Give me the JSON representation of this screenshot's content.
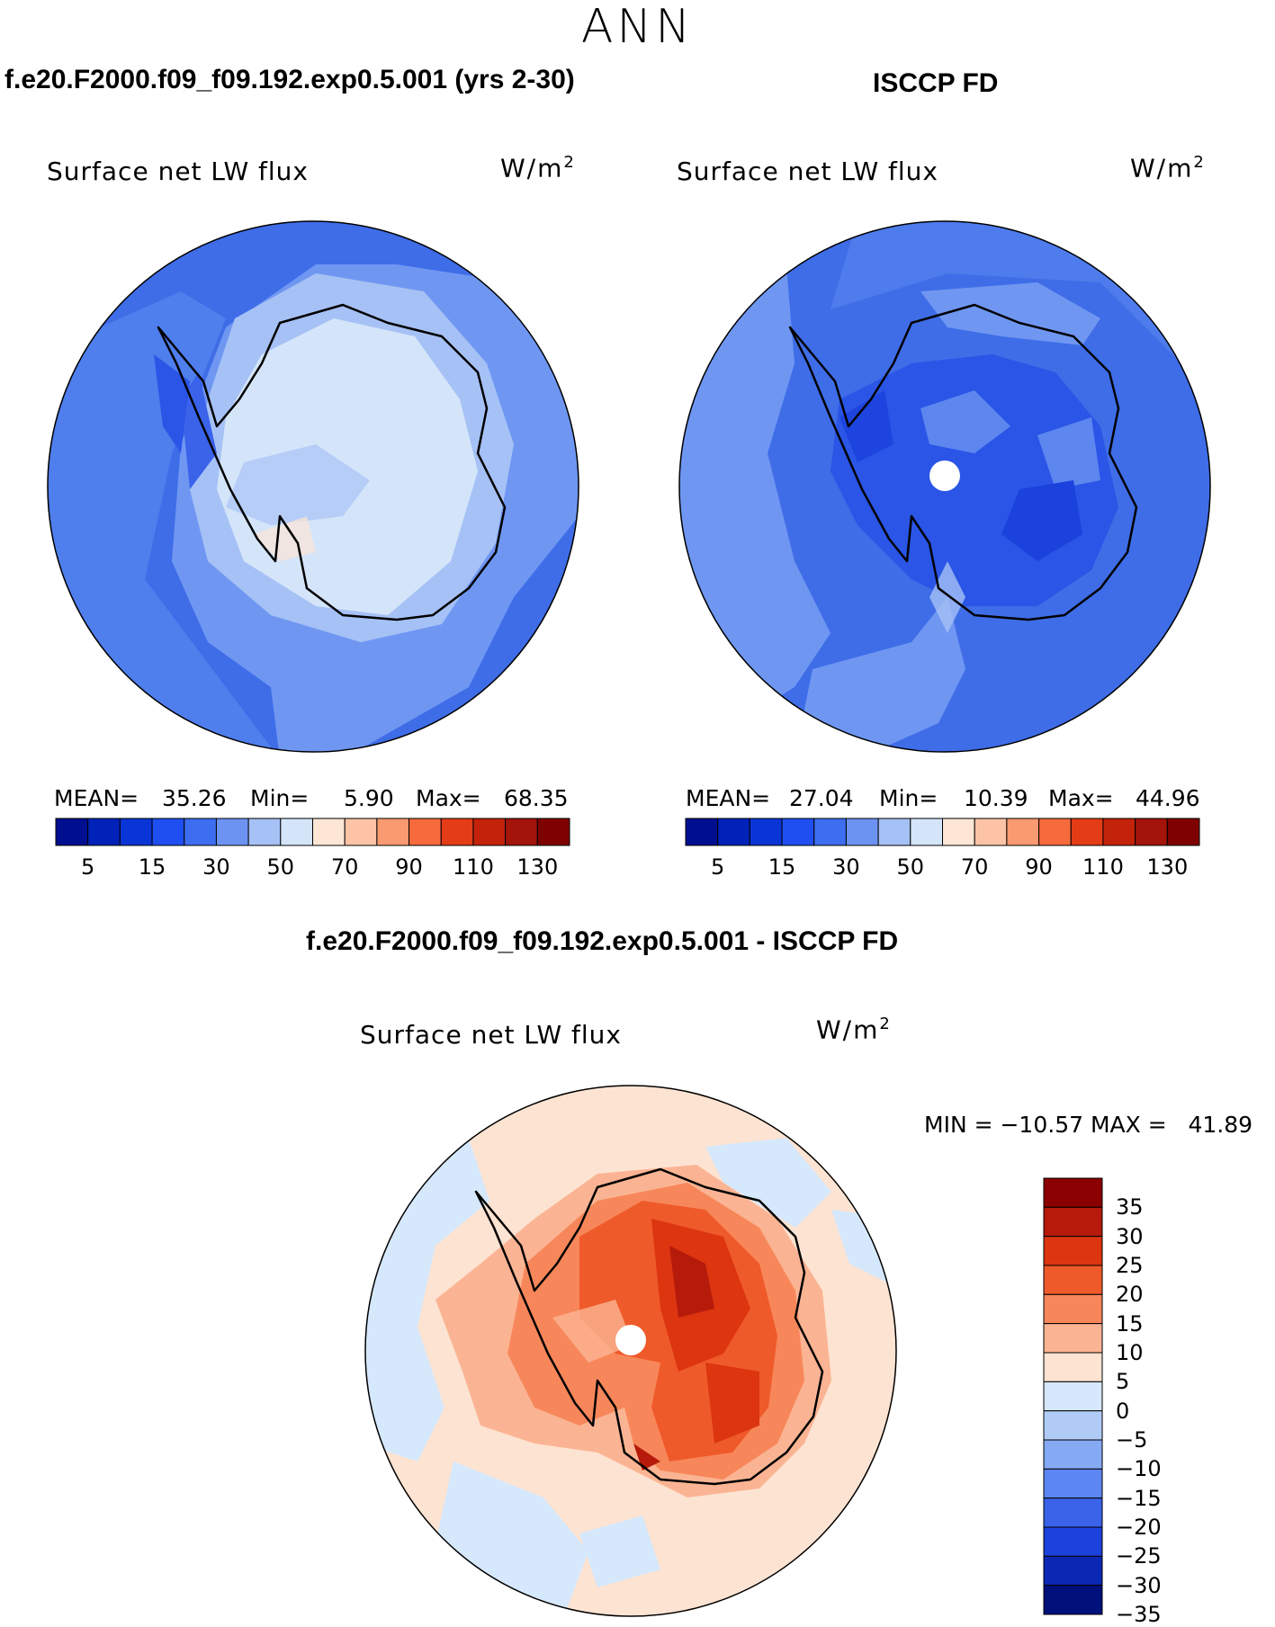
{
  "season": "ANN",
  "panels": {
    "model": {
      "title": "f.e20.F2000.f09_f09.192.exp0.5.001 (yrs 2-30)",
      "variable": "Surface net LW flux",
      "units": "W/m",
      "units_sup": "2",
      "mean_label": "MEAN=",
      "mean_value": "35.26",
      "min_label": "Min=",
      "min_value": "5.90",
      "max_label": "Max=",
      "max_value": "68.35"
    },
    "obs": {
      "title": "ISCCP FD",
      "variable": "Surface net LW flux",
      "units": "W/m",
      "units_sup": "2",
      "mean_label": "MEAN=",
      "mean_value": "27.04",
      "min_label": "Min=",
      "min_value": "10.39",
      "max_label": "Max=",
      "max_value": "44.96"
    },
    "diff": {
      "title": "f.e20.F2000.f09_f09.192.exp0.5.001 - ISCCP FD",
      "variable": "Surface net LW flux",
      "units": "W/m",
      "units_sup": "2",
      "minmax": "MIN = −10.57 MAX =   41.89"
    }
  },
  "colorbar_top": {
    "labels": [
      "5",
      "15",
      "30",
      "50",
      "70",
      "90",
      "110",
      "130"
    ],
    "colors": [
      "#000f8f",
      "#0022b8",
      "#0a35d6",
      "#1f4ff0",
      "#3d6ef0",
      "#6d93f2",
      "#a6c1f5",
      "#d4e5fa",
      "#fde6d6",
      "#fcc3a6",
      "#f99a70",
      "#f66a3c",
      "#e33c16",
      "#c2230a",
      "#a3150a",
      "#7f0000"
    ]
  },
  "colorbar_diff": {
    "labels": [
      "35",
      "30",
      "25",
      "20",
      "15",
      "10",
      "5",
      "0",
      "−5",
      "−10",
      "−15",
      "−20",
      "−25",
      "−30",
      "−35"
    ],
    "colors": [
      "#8b0000",
      "#b51a0a",
      "#dc3510",
      "#ef5a2a",
      "#f7875a",
      "#fbb493",
      "#fde3d2",
      "#d6e8fb",
      "#b0cbf6",
      "#86a9f3",
      "#5c86f1",
      "#3a63ea",
      "#1b42dc",
      "#0a28b4",
      "#00107a"
    ]
  }
}
